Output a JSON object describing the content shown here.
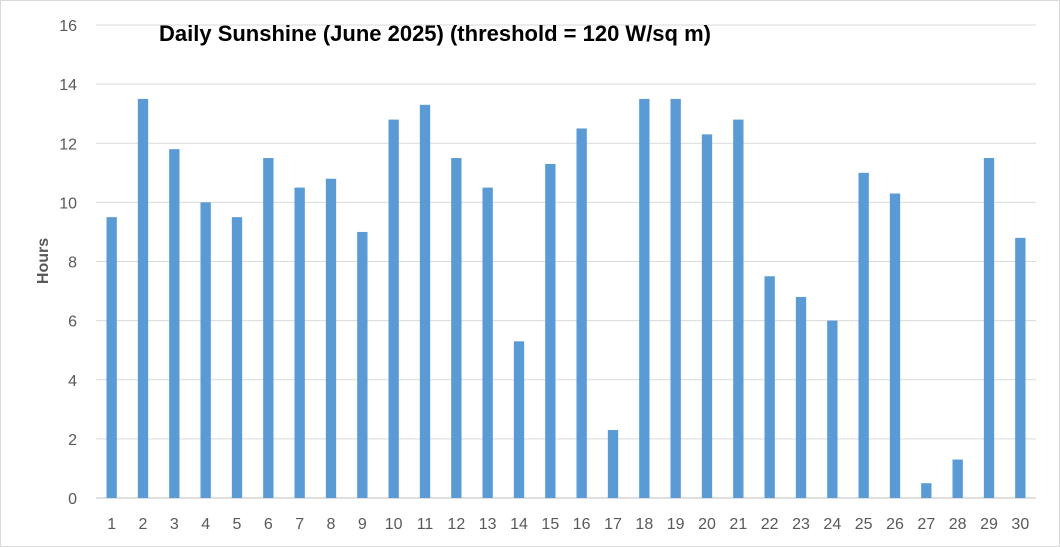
{
  "chart_data": {
    "type": "bar",
    "title": "Daily Sunshine (June 2025) (threshold = 120 W/sq m)",
    "xlabel": "",
    "ylabel": "Hours",
    "ylim": [
      0,
      16
    ],
    "yticks": [
      "0",
      "2",
      "4",
      "6",
      "8",
      "10",
      "12",
      "14",
      "16"
    ],
    "grid": true,
    "legend": "none",
    "bar_color": "#5b9bd5",
    "categories": [
      "1",
      "2",
      "3",
      "4",
      "5",
      "6",
      "7",
      "8",
      "9",
      "10",
      "11",
      "12",
      "13",
      "14",
      "15",
      "16",
      "17",
      "18",
      "19",
      "20",
      "21",
      "22",
      "23",
      "24",
      "25",
      "26",
      "27",
      "28",
      "29",
      "30"
    ],
    "values": [
      9.5,
      13.5,
      11.8,
      10.0,
      9.5,
      11.5,
      10.5,
      10.8,
      9.0,
      12.8,
      13.3,
      11.5,
      10.5,
      5.3,
      11.3,
      12.5,
      2.3,
      13.5,
      13.5,
      12.3,
      12.8,
      7.5,
      6.8,
      6.0,
      11.0,
      10.3,
      0.5,
      1.3,
      11.5,
      8.8
    ]
  }
}
